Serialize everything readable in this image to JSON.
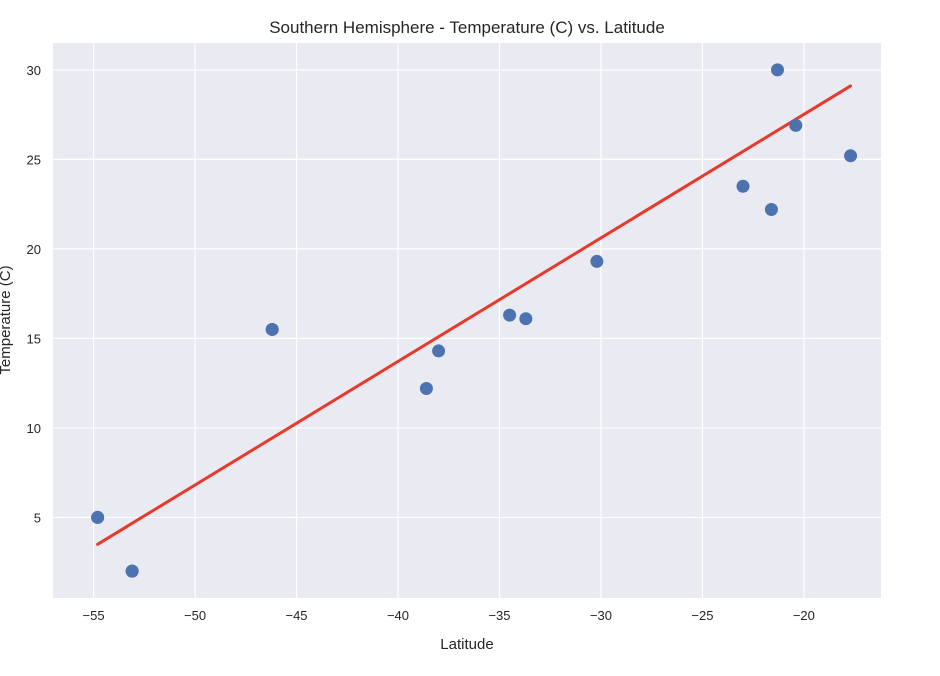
{
  "chart_data": {
    "type": "scatter",
    "title": "Southern Hemisphere - Temperature (C) vs. Latitude",
    "xlabel": "Latitude",
    "ylabel": "Temperature (C)",
    "xlim": [
      -57.0,
      -16.2
    ],
    "ylim": [
      0.5,
      31.5
    ],
    "xticks": [
      -55,
      -50,
      -45,
      -40,
      -35,
      -30,
      -25,
      -20
    ],
    "yticks": [
      5,
      10,
      15,
      20,
      25,
      30
    ],
    "xtick_labels": [
      "−55",
      "−50",
      "−45",
      "−40",
      "−35",
      "−30",
      "−25",
      "−20"
    ],
    "ytick_labels": [
      "5",
      "10",
      "15",
      "20",
      "25",
      "30"
    ],
    "grid": true,
    "background_color": "#eaeaf2",
    "grid_color": "#ffffff",
    "point_color": "#4c72b0",
    "line_color": "#e8392a",
    "points": [
      {
        "x": -54.8,
        "y": 5.0
      },
      {
        "x": -54.8,
        "y": 5.0
      },
      {
        "x": -53.1,
        "y": 2.0
      },
      {
        "x": -53.1,
        "y": 2.0
      },
      {
        "x": -46.2,
        "y": 15.5
      },
      {
        "x": -46.2,
        "y": 15.5
      },
      {
        "x": -38.6,
        "y": 12.2
      },
      {
        "x": -38.0,
        "y": 14.3
      },
      {
        "x": -34.5,
        "y": 16.3
      },
      {
        "x": -33.7,
        "y": 16.1
      },
      {
        "x": -30.2,
        "y": 19.3
      },
      {
        "x": -23.0,
        "y": 23.5
      },
      {
        "x": -21.6,
        "y": 22.2
      },
      {
        "x": -21.3,
        "y": 30.0
      },
      {
        "x": -20.4,
        "y": 26.9
      },
      {
        "x": -17.7,
        "y": 25.2
      }
    ],
    "regression_line": {
      "x": [
        -54.8,
        -17.7
      ],
      "y": [
        3.5,
        29.1
      ]
    }
  }
}
